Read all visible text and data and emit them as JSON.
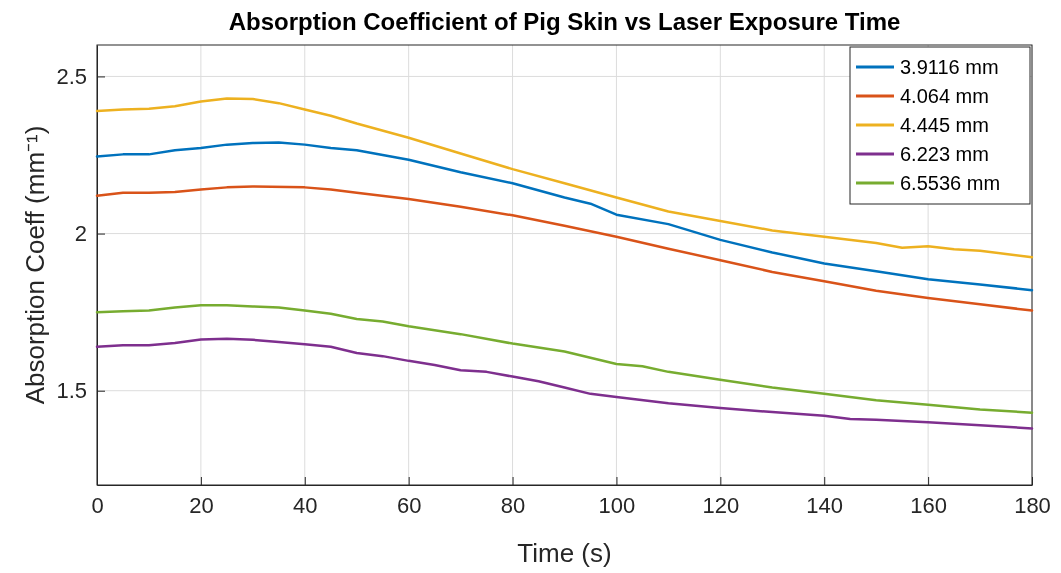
{
  "chart_data": {
    "type": "line",
    "title": "Absorption Coefficient of Pig Skin vs Laser Exposure Time",
    "xlabel": "Time (s)",
    "ylabel": "Absorption Coeff (mm⁻¹)",
    "xlim": [
      0,
      180
    ],
    "xticks": [
      0,
      20,
      40,
      60,
      80,
      100,
      120,
      140,
      160,
      180
    ],
    "ylim": [
      1.2,
      2.6
    ],
    "yticks": [
      1.5,
      2,
      2.5
    ],
    "grid": true,
    "legend": "top right",
    "line_style": "solid",
    "marker": "none",
    "series": [
      {
        "name": "3.9116 mm",
        "color": "#0072bd",
        "x": [
          0,
          5,
          10,
          15,
          20,
          25,
          30,
          35,
          40,
          45,
          50,
          55,
          60,
          70,
          80,
          90,
          95,
          100,
          110,
          120,
          130,
          140,
          150,
          160,
          170,
          180
        ],
        "values": [
          2.245,
          2.252,
          2.252,
          2.265,
          2.272,
          2.283,
          2.288,
          2.29,
          2.283,
          2.272,
          2.265,
          2.25,
          2.235,
          2.195,
          2.16,
          2.115,
          2.095,
          2.06,
          2.03,
          1.98,
          1.94,
          1.905,
          1.88,
          1.855,
          1.838,
          1.82
        ]
      },
      {
        "name": "4.064 mm",
        "color": "#d95319",
        "x": [
          0,
          5,
          10,
          15,
          20,
          25,
          30,
          40,
          45,
          50,
          60,
          70,
          80,
          90,
          100,
          110,
          120,
          130,
          140,
          150,
          160,
          170,
          180
        ],
        "values": [
          2.12,
          2.13,
          2.13,
          2.132,
          2.14,
          2.147,
          2.15,
          2.147,
          2.14,
          2.13,
          2.11,
          2.085,
          2.058,
          2.025,
          1.99,
          1.952,
          1.915,
          1.878,
          1.848,
          1.818,
          1.795,
          1.775,
          1.755
        ]
      },
      {
        "name": "4.445 mm",
        "color": "#edb120",
        "x": [
          0,
          5,
          10,
          15,
          20,
          25,
          30,
          35,
          40,
          45,
          50,
          60,
          70,
          80,
          90,
          100,
          110,
          120,
          130,
          140,
          150,
          155,
          160,
          165,
          170,
          180
        ],
        "values": [
          2.39,
          2.395,
          2.397,
          2.405,
          2.42,
          2.43,
          2.428,
          2.415,
          2.395,
          2.375,
          2.35,
          2.305,
          2.255,
          2.205,
          2.16,
          2.115,
          2.07,
          2.04,
          2.01,
          1.99,
          1.97,
          1.955,
          1.96,
          1.95,
          1.945,
          1.925
        ]
      },
      {
        "name": "6.223 mm",
        "color": "#7e2f8e",
        "x": [
          0,
          5,
          10,
          15,
          20,
          25,
          30,
          35,
          40,
          45,
          50,
          55,
          60,
          65,
          70,
          75,
          80,
          85,
          90,
          95,
          100,
          110,
          120,
          130,
          140,
          145,
          150,
          160,
          170,
          180
        ],
        "values": [
          1.64,
          1.645,
          1.645,
          1.652,
          1.663,
          1.665,
          1.662,
          1.655,
          1.648,
          1.64,
          1.62,
          1.61,
          1.595,
          1.582,
          1.565,
          1.56,
          1.545,
          1.53,
          1.51,
          1.49,
          1.48,
          1.46,
          1.445,
          1.432,
          1.42,
          1.41,
          1.408,
          1.4,
          1.39,
          1.38
        ]
      },
      {
        "name": "6.5536 mm",
        "color": "#77ac30",
        "x": [
          0,
          5,
          10,
          15,
          20,
          25,
          30,
          35,
          40,
          45,
          50,
          55,
          60,
          70,
          80,
          90,
          100,
          105,
          110,
          120,
          130,
          140,
          150,
          160,
          170,
          180
        ],
        "values": [
          1.75,
          1.753,
          1.755,
          1.765,
          1.772,
          1.772,
          1.768,
          1.765,
          1.755,
          1.745,
          1.728,
          1.72,
          1.705,
          1.68,
          1.65,
          1.625,
          1.585,
          1.578,
          1.56,
          1.535,
          1.51,
          1.49,
          1.47,
          1.455,
          1.44,
          1.43
        ]
      }
    ]
  }
}
